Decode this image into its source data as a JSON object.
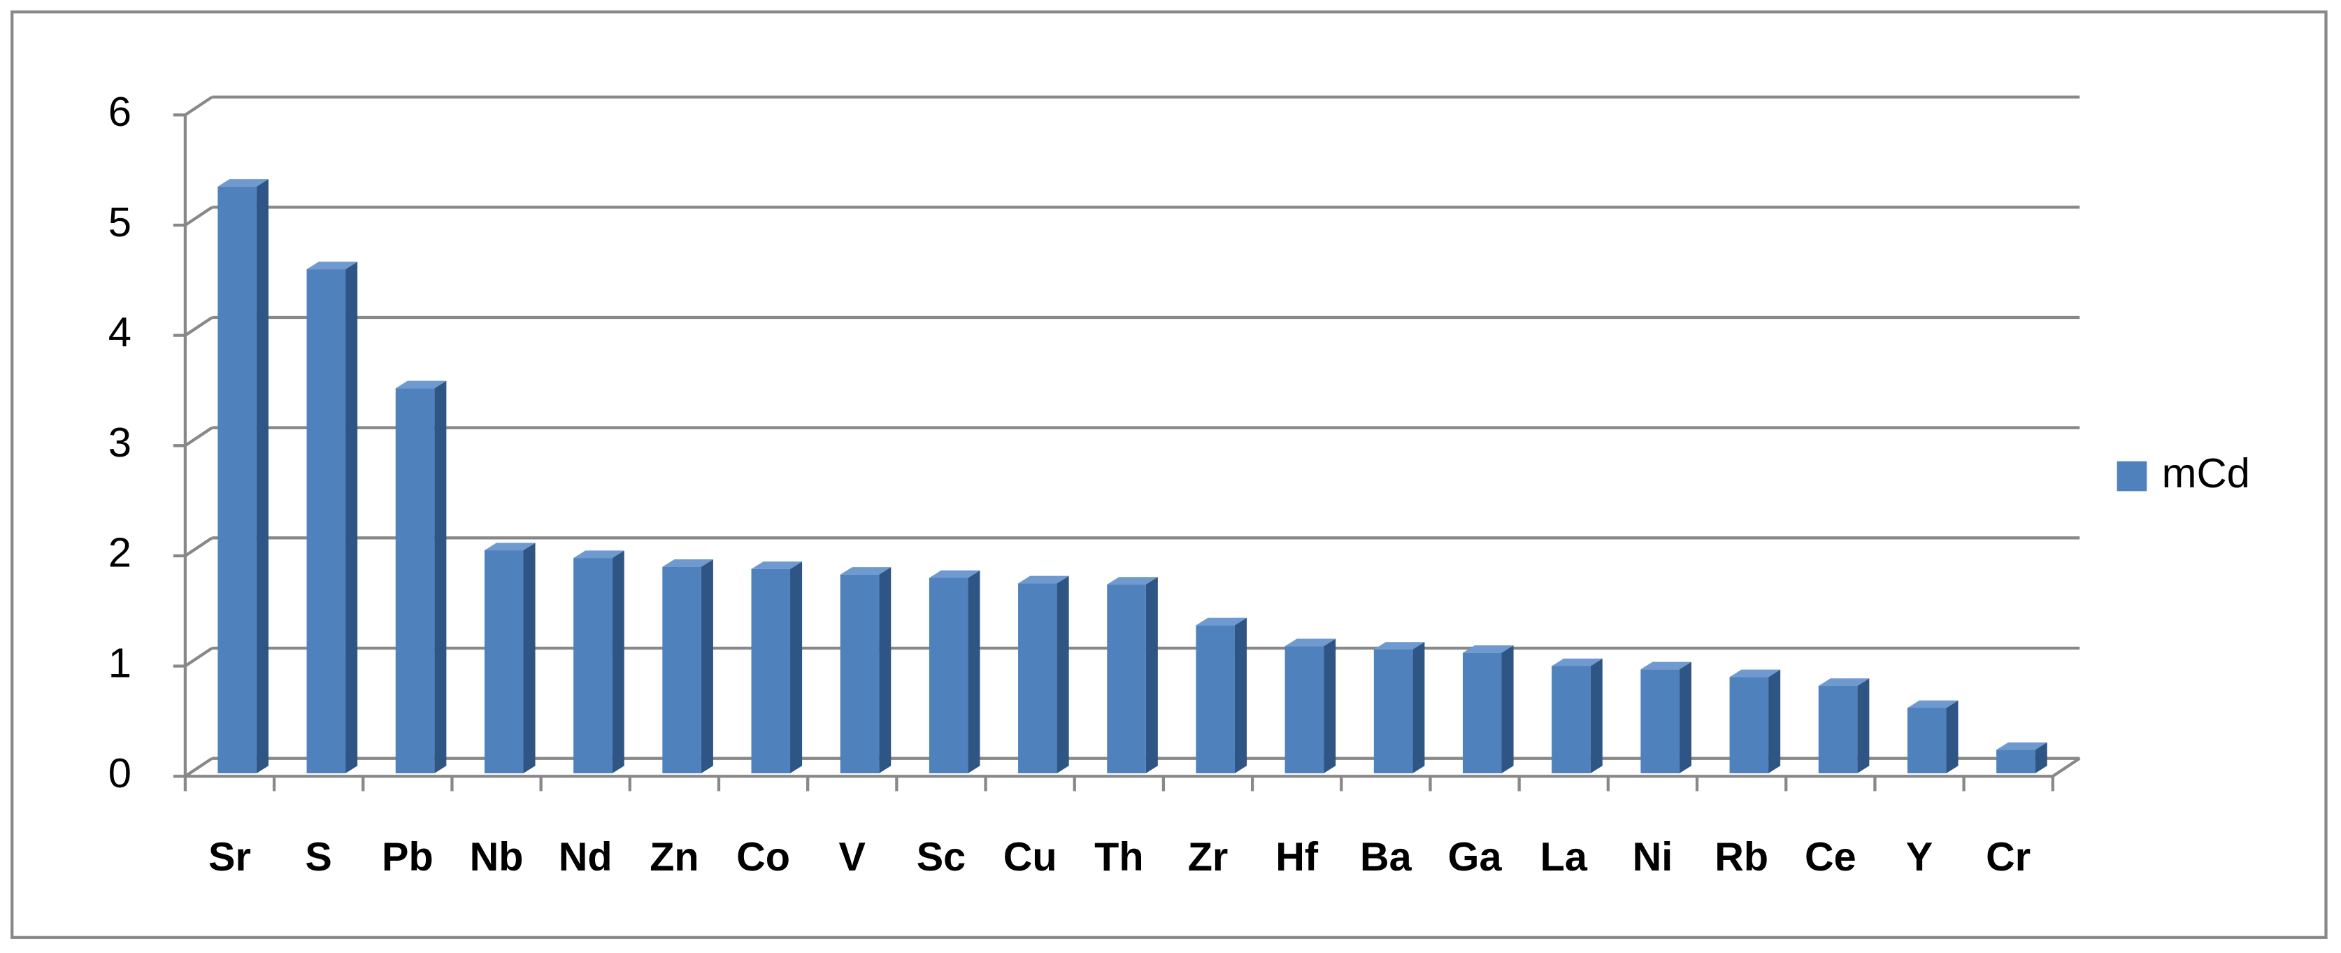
{
  "chart_data": {
    "type": "bar",
    "style": "3d",
    "categories": [
      "Sr",
      "S",
      "Pb",
      "Nb",
      "Nd",
      "Zn",
      "Co",
      "V",
      "Sc",
      "Cu",
      "Th",
      "Zr",
      "Hf",
      "Ba",
      "Ga",
      "La",
      "Ni",
      "Rb",
      "Ce",
      "Y",
      "Cr"
    ],
    "series": [
      {
        "name": "mCd",
        "color": "#4f81bd",
        "values": [
          5.35,
          4.6,
          3.52,
          2.05,
          1.98,
          1.9,
          1.88,
          1.83,
          1.8,
          1.75,
          1.74,
          1.37,
          1.18,
          1.15,
          1.12,
          1.0,
          0.97,
          0.9,
          0.82,
          0.62,
          0.24
        ]
      }
    ],
    "ylim": [
      0,
      6
    ],
    "yticks": [
      0,
      1,
      2,
      3,
      4,
      5,
      6
    ],
    "grid": true,
    "legend": "right"
  }
}
